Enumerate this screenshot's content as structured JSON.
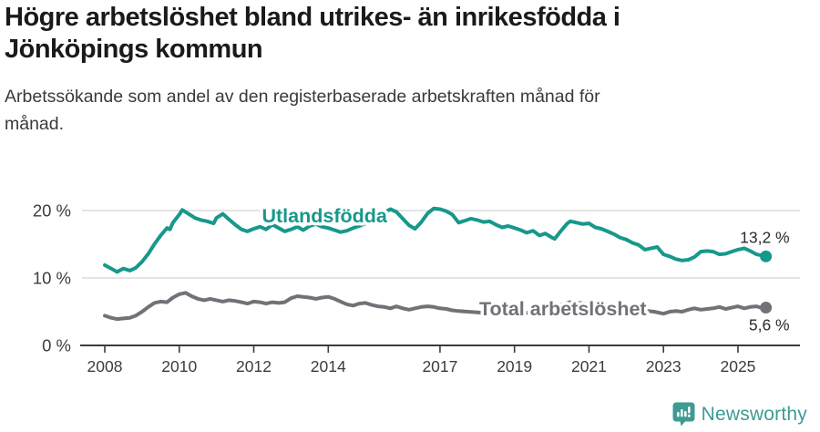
{
  "header": {
    "title_lines": [
      "Högre arbetslöshet bland utrikes- än inrikesfödda i",
      "Jönköpings kommun"
    ],
    "subtitle_lines": [
      "Arbetssökande som andel av den registerbaserade arbetskraften månad för",
      "månad."
    ]
  },
  "chart_data": {
    "type": "line",
    "title": "Högre arbetslöshet bland utrikes- än inrikesfödda i Jönköpings kommun",
    "subtitle": "Arbetssökande som andel av den registerbaserade arbetskraften månad för månad.",
    "xlabel": "",
    "ylabel": "",
    "unit": "%",
    "grid": "horizontal",
    "legend_position": "inline-labels",
    "ylim": [
      0,
      22
    ],
    "xlim": [
      2007.4,
      2026.6
    ],
    "ytick_values": [
      0,
      10,
      20
    ],
    "ytick_labels": [
      "0 %",
      "10 %",
      "20 %"
    ],
    "xtick_years": [
      2008,
      2010,
      2012,
      2014,
      2017,
      2019,
      2021,
      2023,
      2025
    ],
    "series": [
      {
        "name": "Utlandsfödda",
        "color": "#17988b",
        "end_value": 13.2,
        "end_label": "13,2 %",
        "end_label_pos": "above",
        "inline_label": {
          "text": "Utlandsfödda",
          "x": 2013.9,
          "y": 19.2
        },
        "points": [
          [
            2008.0,
            11.9
          ],
          [
            2008.17,
            11.4
          ],
          [
            2008.33,
            10.9
          ],
          [
            2008.5,
            11.4
          ],
          [
            2008.67,
            11.1
          ],
          [
            2008.83,
            11.5
          ],
          [
            2009.0,
            12.4
          ],
          [
            2009.17,
            13.6
          ],
          [
            2009.33,
            15.0
          ],
          [
            2009.5,
            16.3
          ],
          [
            2009.67,
            17.4
          ],
          [
            2009.75,
            17.2
          ],
          [
            2009.83,
            18.2
          ],
          [
            2010.0,
            19.4
          ],
          [
            2010.08,
            20.1
          ],
          [
            2010.25,
            19.5
          ],
          [
            2010.42,
            18.9
          ],
          [
            2010.58,
            18.6
          ],
          [
            2010.75,
            18.4
          ],
          [
            2010.92,
            18.1
          ],
          [
            2011.0,
            18.9
          ],
          [
            2011.17,
            19.5
          ],
          [
            2011.33,
            18.7
          ],
          [
            2011.5,
            17.9
          ],
          [
            2011.67,
            17.2
          ],
          [
            2011.83,
            16.9
          ],
          [
            2012.0,
            17.3
          ],
          [
            2012.17,
            17.6
          ],
          [
            2012.33,
            17.2
          ],
          [
            2012.5,
            17.9
          ],
          [
            2012.67,
            17.4
          ],
          [
            2012.83,
            16.9
          ],
          [
            2013.0,
            17.2
          ],
          [
            2013.17,
            17.6
          ],
          [
            2013.33,
            17.1
          ],
          [
            2013.5,
            17.7
          ],
          [
            2013.67,
            18.0
          ],
          [
            2013.83,
            17.6
          ],
          [
            2014.0,
            17.4
          ],
          [
            2014.17,
            17.1
          ],
          [
            2014.33,
            16.8
          ],
          [
            2014.5,
            17.0
          ],
          [
            2014.67,
            17.4
          ],
          [
            2014.83,
            17.7
          ],
          [
            2015.0,
            18.1
          ],
          [
            2015.17,
            18.6
          ],
          [
            2015.33,
            19.1
          ],
          [
            2015.5,
            19.7
          ],
          [
            2015.67,
            20.2
          ],
          [
            2015.83,
            19.8
          ],
          [
            2016.0,
            18.8
          ],
          [
            2016.17,
            17.8
          ],
          [
            2016.33,
            17.3
          ],
          [
            2016.5,
            18.3
          ],
          [
            2016.67,
            19.6
          ],
          [
            2016.83,
            20.3
          ],
          [
            2017.0,
            20.2
          ],
          [
            2017.17,
            19.9
          ],
          [
            2017.33,
            19.4
          ],
          [
            2017.5,
            18.2
          ],
          [
            2017.67,
            18.5
          ],
          [
            2017.83,
            18.8
          ],
          [
            2018.0,
            18.6
          ],
          [
            2018.17,
            18.3
          ],
          [
            2018.33,
            18.4
          ],
          [
            2018.5,
            17.9
          ],
          [
            2018.67,
            17.5
          ],
          [
            2018.83,
            17.7
          ],
          [
            2019.0,
            17.4
          ],
          [
            2019.17,
            17.1
          ],
          [
            2019.33,
            16.7
          ],
          [
            2019.5,
            17.0
          ],
          [
            2019.67,
            16.3
          ],
          [
            2019.83,
            16.6
          ],
          [
            2020.0,
            16.0
          ],
          [
            2020.08,
            15.8
          ],
          [
            2020.25,
            17.0
          ],
          [
            2020.42,
            18.1
          ],
          [
            2020.5,
            18.4
          ],
          [
            2020.67,
            18.2
          ],
          [
            2020.83,
            18.0
          ],
          [
            2021.0,
            18.1
          ],
          [
            2021.17,
            17.5
          ],
          [
            2021.33,
            17.3
          ],
          [
            2021.5,
            16.9
          ],
          [
            2021.67,
            16.5
          ],
          [
            2021.83,
            16.0
          ],
          [
            2022.0,
            15.7
          ],
          [
            2022.17,
            15.2
          ],
          [
            2022.33,
            14.9
          ],
          [
            2022.5,
            14.2
          ],
          [
            2022.67,
            14.4
          ],
          [
            2022.83,
            14.6
          ],
          [
            2023.0,
            13.5
          ],
          [
            2023.17,
            13.2
          ],
          [
            2023.33,
            12.8
          ],
          [
            2023.5,
            12.6
          ],
          [
            2023.67,
            12.7
          ],
          [
            2023.83,
            13.1
          ],
          [
            2024.0,
            13.9
          ],
          [
            2024.17,
            14.0
          ],
          [
            2024.33,
            13.9
          ],
          [
            2024.5,
            13.5
          ],
          [
            2024.67,
            13.6
          ],
          [
            2024.83,
            13.9
          ],
          [
            2025.0,
            14.2
          ],
          [
            2025.17,
            14.4
          ],
          [
            2025.33,
            14.0
          ],
          [
            2025.5,
            13.5
          ],
          [
            2025.67,
            13.3
          ],
          [
            2025.75,
            13.2
          ]
        ]
      },
      {
        "name": "Total arbetslöshet",
        "color": "#747077",
        "end_value": 5.6,
        "end_label": "5,6 %",
        "end_label_pos": "below",
        "inline_label": {
          "text": "Total arbetslöshet",
          "x": 2020.3,
          "y": 5.4
        },
        "points": [
          [
            2008.0,
            4.4
          ],
          [
            2008.17,
            4.1
          ],
          [
            2008.33,
            3.9
          ],
          [
            2008.5,
            4.0
          ],
          [
            2008.67,
            4.1
          ],
          [
            2008.83,
            4.4
          ],
          [
            2009.0,
            5.0
          ],
          [
            2009.17,
            5.7
          ],
          [
            2009.33,
            6.3
          ],
          [
            2009.5,
            6.5
          ],
          [
            2009.67,
            6.4
          ],
          [
            2009.83,
            7.1
          ],
          [
            2010.0,
            7.6
          ],
          [
            2010.17,
            7.8
          ],
          [
            2010.33,
            7.3
          ],
          [
            2010.5,
            6.9
          ],
          [
            2010.67,
            6.7
          ],
          [
            2010.83,
            6.9
          ],
          [
            2011.0,
            6.7
          ],
          [
            2011.17,
            6.5
          ],
          [
            2011.33,
            6.7
          ],
          [
            2011.5,
            6.6
          ],
          [
            2011.67,
            6.4
          ],
          [
            2011.83,
            6.2
          ],
          [
            2012.0,
            6.5
          ],
          [
            2012.17,
            6.4
          ],
          [
            2012.33,
            6.2
          ],
          [
            2012.5,
            6.4
          ],
          [
            2012.67,
            6.3
          ],
          [
            2012.83,
            6.4
          ],
          [
            2013.0,
            7.0
          ],
          [
            2013.17,
            7.3
          ],
          [
            2013.33,
            7.2
          ],
          [
            2013.5,
            7.1
          ],
          [
            2013.67,
            6.9
          ],
          [
            2013.83,
            7.1
          ],
          [
            2014.0,
            7.2
          ],
          [
            2014.17,
            6.9
          ],
          [
            2014.33,
            6.5
          ],
          [
            2014.5,
            6.1
          ],
          [
            2014.67,
            5.9
          ],
          [
            2014.83,
            6.2
          ],
          [
            2015.0,
            6.3
          ],
          [
            2015.17,
            6.0
          ],
          [
            2015.33,
            5.8
          ],
          [
            2015.5,
            5.7
          ],
          [
            2015.67,
            5.5
          ],
          [
            2015.83,
            5.8
          ],
          [
            2016.0,
            5.5
          ],
          [
            2016.17,
            5.3
          ],
          [
            2016.33,
            5.5
          ],
          [
            2016.5,
            5.7
          ],
          [
            2016.67,
            5.8
          ],
          [
            2016.83,
            5.7
          ],
          [
            2017.0,
            5.5
          ],
          [
            2017.17,
            5.4
          ],
          [
            2017.33,
            5.2
          ],
          [
            2017.5,
            5.1
          ],
          [
            2017.75,
            5.0
          ],
          [
            2018.0,
            4.9
          ],
          [
            2018.25,
            4.8
          ],
          [
            2018.5,
            4.8
          ],
          [
            2018.75,
            4.7
          ],
          [
            2019.0,
            4.7
          ],
          [
            2019.25,
            4.8
          ],
          [
            2019.5,
            4.9
          ],
          [
            2019.75,
            5.1
          ],
          [
            2020.0,
            5.3
          ],
          [
            2020.25,
            6.0
          ],
          [
            2020.5,
            6.4
          ],
          [
            2020.75,
            6.3
          ],
          [
            2021.0,
            6.1
          ],
          [
            2021.25,
            5.8
          ],
          [
            2021.5,
            5.5
          ],
          [
            2021.75,
            5.3
          ],
          [
            2022.0,
            5.2
          ],
          [
            2022.25,
            5.1
          ],
          [
            2022.42,
            5.1
          ],
          [
            2022.58,
            5.1
          ],
          [
            2022.75,
            5.0
          ],
          [
            2023.0,
            4.7
          ],
          [
            2023.17,
            5.0
          ],
          [
            2023.33,
            5.1
          ],
          [
            2023.5,
            5.0
          ],
          [
            2023.67,
            5.3
          ],
          [
            2023.83,
            5.5
          ],
          [
            2024.0,
            5.3
          ],
          [
            2024.17,
            5.4
          ],
          [
            2024.33,
            5.5
          ],
          [
            2024.5,
            5.7
          ],
          [
            2024.67,
            5.4
          ],
          [
            2024.83,
            5.6
          ],
          [
            2025.0,
            5.8
          ],
          [
            2025.17,
            5.5
          ],
          [
            2025.33,
            5.7
          ],
          [
            2025.5,
            5.8
          ],
          [
            2025.67,
            5.5
          ],
          [
            2025.75,
            5.6
          ]
        ]
      }
    ],
    "colors": {
      "grid": "#dcdcdc",
      "axis": "#3c3c3c",
      "tick_text": "#3c3c3c",
      "value_label_text": "#2b2b2b"
    }
  },
  "footer": {
    "brand": "Newsworthy",
    "brand_color": "#3d9b94",
    "logo_icon": "bar-chart-speech-bubble-icon"
  }
}
